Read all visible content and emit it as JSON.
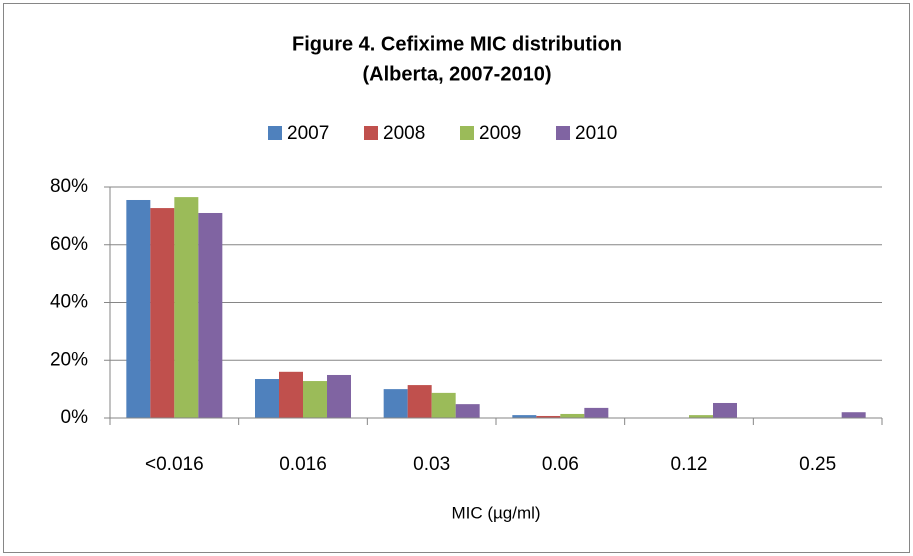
{
  "chart_data": {
    "type": "bar",
    "title": [
      "Figure 4. Cefixime MIC distribution",
      "(Alberta, 2007-2010)"
    ],
    "xlabel": "MIC (µg/ml)",
    "categories": [
      "<0.016",
      "0.016",
      "0.03",
      "0.06",
      "0.12",
      "0.25"
    ],
    "series": [
      {
        "name": "2007",
        "color": "#4f81bd",
        "values": [
          75.5,
          13.5,
          10,
          1,
          0,
          0
        ]
      },
      {
        "name": "2008",
        "color": "#c0504d",
        "values": [
          72.7,
          16,
          11.4,
          0.7,
          0,
          0
        ]
      },
      {
        "name": "2009",
        "color": "#9bbb59",
        "values": [
          76.5,
          12.8,
          8.7,
          1.4,
          1,
          0
        ]
      },
      {
        "name": "2010",
        "color": "#8064a2",
        "values": [
          71,
          14.9,
          4.8,
          3.5,
          5.2,
          2
        ]
      }
    ],
    "ylim": [
      0,
      80
    ],
    "yticks": [
      {
        "value": 0,
        "label": "0%"
      },
      {
        "value": 20,
        "label": "20%"
      },
      {
        "value": 40,
        "label": "40%"
      },
      {
        "value": 60,
        "label": "60%"
      },
      {
        "value": 80,
        "label": "80%"
      }
    ],
    "grid": true,
    "legend": "top"
  }
}
